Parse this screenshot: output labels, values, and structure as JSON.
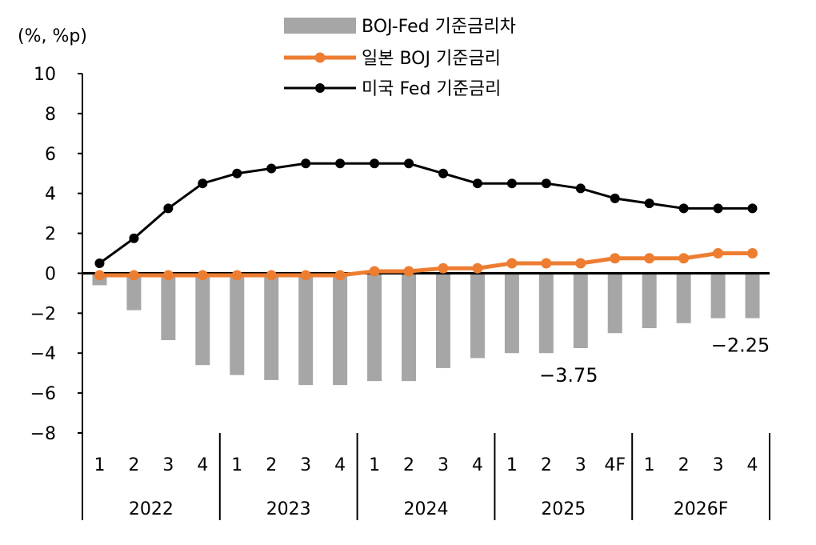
{
  "chart_data": {
    "type": "bar+line",
    "unit_label": "(%, %p)",
    "ylim": [
      -8,
      10
    ],
    "yticks": [
      10,
      8,
      6,
      4,
      2,
      0,
      -2,
      -4,
      -6,
      -8
    ],
    "grid": false,
    "legend_position": "top-center",
    "categories": [
      "1",
      "2",
      "3",
      "4",
      "1",
      "2",
      "3",
      "4",
      "1",
      "2",
      "3",
      "4",
      "1",
      "2",
      "3",
      "4F",
      "1",
      "2",
      "3",
      "4"
    ],
    "years": [
      "2022",
      "2023",
      "2024",
      "2025",
      "2026F"
    ],
    "series": [
      {
        "name": "BOJ-Fed 기준금리차",
        "kind": "bar",
        "color": "#A6A6A6",
        "values": [
          -0.6,
          -1.85,
          -3.35,
          -4.6,
          -5.1,
          -5.35,
          -5.6,
          -5.6,
          -5.4,
          -5.4,
          -4.75,
          -4.25,
          -4.0,
          -4.0,
          -3.75,
          -3.0,
          -2.75,
          -2.5,
          -2.25,
          -2.25
        ]
      },
      {
        "name": "일본 BOJ 기준금리",
        "kind": "line",
        "color": "#ED7D31",
        "values": [
          -0.1,
          -0.1,
          -0.1,
          -0.1,
          -0.1,
          -0.1,
          -0.1,
          -0.1,
          0.1,
          0.1,
          0.25,
          0.25,
          0.5,
          0.5,
          0.5,
          0.75,
          0.75,
          0.75,
          1.0,
          1.0
        ]
      },
      {
        "name": "미국 Fed 기준금리",
        "kind": "line",
        "color": "#000000",
        "values": [
          0.5,
          1.75,
          3.25,
          4.5,
          5.0,
          5.25,
          5.5,
          5.5,
          5.5,
          5.5,
          5.0,
          4.5,
          4.5,
          4.5,
          4.25,
          3.75,
          3.5,
          3.25,
          3.25,
          3.25
        ]
      }
    ],
    "annotations": [
      {
        "text": "-3.75",
        "category_index": 14
      },
      {
        "text": "-2.25",
        "category_index": 19
      }
    ]
  }
}
